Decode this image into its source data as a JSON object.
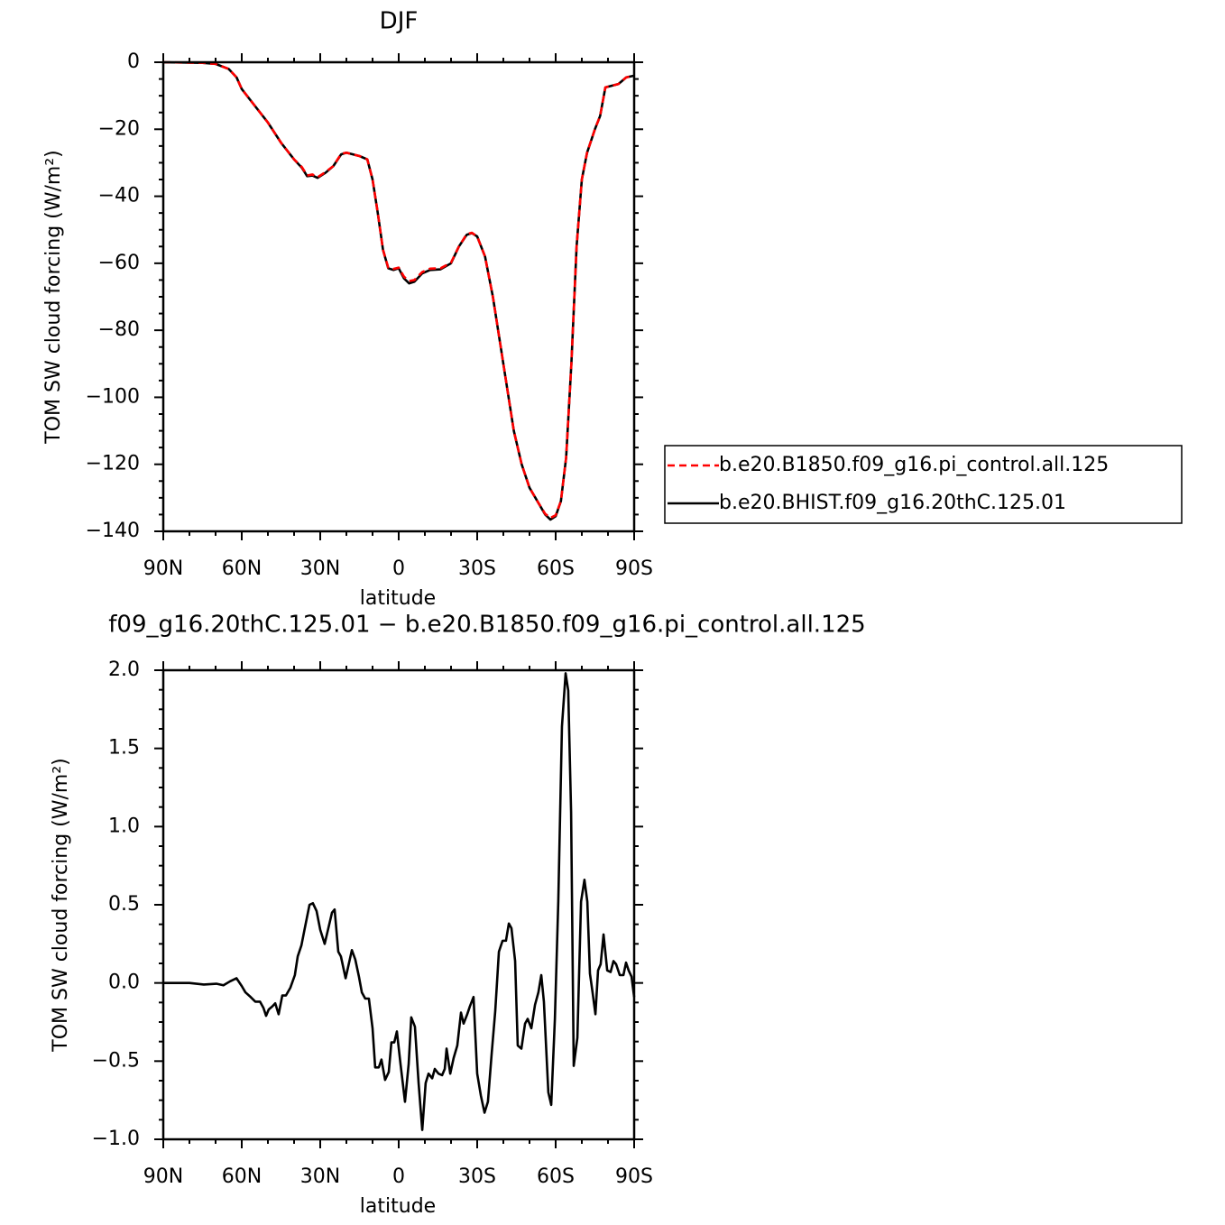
{
  "chart_data": [
    {
      "type": "line",
      "title": "DJF",
      "xlabel": "latitude",
      "ylabel": "TOM SW cloud forcing (W/m²)",
      "xlim": [
        90,
        -90
      ],
      "xticks": [
        {
          "value": 90,
          "label": "90N"
        },
        {
          "value": 60,
          "label": "60N"
        },
        {
          "value": 30,
          "label": "30N"
        },
        0,
        {
          "value": -30,
          "label": "30S"
        },
        {
          "value": -60,
          "label": "60S"
        },
        {
          "value": -90,
          "label": "90S"
        }
      ],
      "ylim": [
        -140,
        0
      ],
      "yticks": [
        0,
        {
          "value": -20,
          "label": "−20"
        },
        {
          "value": -40,
          "label": "−40"
        },
        {
          "value": -60,
          "label": "−60"
        },
        {
          "value": -80,
          "label": "−80"
        },
        {
          "value": -100,
          "label": "−100"
        },
        {
          "value": -120,
          "label": "−120"
        },
        {
          "value": -140,
          "label": "−140"
        }
      ],
      "legend": "right",
      "x": [
        90,
        75,
        70,
        65,
        62,
        60,
        55,
        50,
        45,
        40,
        37,
        35,
        33,
        31,
        28,
        25,
        22,
        20,
        15,
        12,
        10,
        8,
        6,
        4,
        2,
        0,
        -2,
        -4,
        -6,
        -9,
        -12,
        -16,
        -20,
        -23,
        -26,
        -28,
        -30,
        -33,
        -36,
        -40,
        -44,
        -47,
        -50,
        -53,
        -56,
        -58,
        -60,
        -62,
        -64,
        -66,
        -68,
        -70,
        -72,
        -75,
        -77,
        -79,
        -84,
        -87,
        -90
      ],
      "series": [
        {
          "name": "b.e20.B1850.f09_g16.pi_control.all.125",
          "color": "#ff0000",
          "dashed": true,
          "values": [
            0,
            -0.2,
            -0.5,
            -2,
            -4.5,
            -8,
            -13,
            -18,
            -24,
            -29,
            -31.3,
            -33.8,
            -33.5,
            -34.3,
            -32.8,
            -31,
            -27.3,
            -27,
            -28,
            -29,
            -35,
            -45,
            -56,
            -61.3,
            -61.7,
            -61.3,
            -64,
            -65.3,
            -65,
            -62.6,
            -61.6,
            -61.5,
            -59.8,
            -55,
            -51.3,
            -50.9,
            -52,
            -58,
            -70,
            -90,
            -110,
            -120,
            -127,
            -131,
            -134.8,
            -136,
            -135.2,
            -131,
            -118,
            -90,
            -55,
            -35,
            -27,
            -20,
            -16,
            -7.5,
            -6.5,
            -4.5,
            -4
          ]
        },
        {
          "name": "b.e20.BHIST.f09_g16.20thC.125.01",
          "color": "#000000",
          "dashed": false,
          "values": [
            0,
            -0.2,
            -0.5,
            -2,
            -4.5,
            -8,
            -13,
            -18,
            -24,
            -29,
            -31.5,
            -34,
            -33.8,
            -34.5,
            -33,
            -31,
            -27.5,
            -27,
            -28,
            -29,
            -35,
            -45,
            -56,
            -61.5,
            -62,
            -61.5,
            -64.5,
            -66,
            -65.5,
            -63,
            -62,
            -61.8,
            -60,
            -55,
            -51.5,
            -51,
            -52,
            -58,
            -70,
            -90,
            -110,
            -120,
            -127,
            -131,
            -135,
            -136.5,
            -135.5,
            -131,
            -118,
            -90,
            -55,
            -35,
            -27,
            -20,
            -16,
            -7.5,
            -6.5,
            -4.5,
            -4
          ]
        }
      ]
    },
    {
      "type": "line",
      "title": "f09_g16.20thC.125.01 − b.e20.B1850.f09_g16.pi_control.all.125",
      "xlabel": "latitude",
      "ylabel": "TOM SW cloud forcing (W/m²)",
      "xlim": [
        90,
        -90
      ],
      "xticks": [
        {
          "value": 90,
          "label": "90N"
        },
        {
          "value": 60,
          "label": "60N"
        },
        {
          "value": 30,
          "label": "30N"
        },
        0,
        {
          "value": -30,
          "label": "30S"
        },
        {
          "value": -60,
          "label": "60S"
        },
        {
          "value": -90,
          "label": "90S"
        }
      ],
      "ylim": [
        -1,
        2
      ],
      "yticks": [
        {
          "value": 2,
          "label": "2.0"
        },
        {
          "value": 1.5,
          "label": "1.5"
        },
        {
          "value": 1,
          "label": "1.0"
        },
        {
          "value": 0.5,
          "label": "0.5"
        },
        {
          "value": 0,
          "label": "0.0"
        },
        {
          "value": -0.5,
          "label": "−0.5"
        },
        {
          "value": -1,
          "label": "−1.0"
        }
      ],
      "color": "#000000",
      "x": [
        90,
        80,
        74.5,
        69.7,
        67,
        64.5,
        62,
        60,
        58.6,
        56.6,
        54.8,
        53,
        51.7,
        50.7,
        49.7,
        48.3,
        47.2,
        45.9,
        44.5,
        43.1,
        41.4,
        39.7,
        38.6,
        37.2,
        35.9,
        34.1,
        32.8,
        31.4,
        30,
        28.3,
        26.9,
        25.5,
        24.5,
        23.1,
        22.1,
        20.3,
        17.9,
        16.6,
        15.2,
        14.1,
        12.8,
        11.4,
        10,
        9,
        7.6,
        6.6,
        5.2,
        3.8,
        2.8,
        1.7,
        0.7,
        -0.7,
        -2.4,
        -3.8,
        -4.8,
        -6.2,
        -7.6,
        -9,
        -10.3,
        -11.4,
        -12.8,
        -13.8,
        -15.2,
        -16.6,
        -17.6,
        -18.3,
        -19.7,
        -21,
        -22.4,
        -23.8,
        -24.8,
        -26.2,
        -27.2,
        -28.6,
        -30,
        -31.4,
        -32.8,
        -34.1,
        -35.5,
        -36.9,
        -38.3,
        -39.7,
        -41,
        -42.1,
        -43.1,
        -44.5,
        -45.5,
        -46.9,
        -48.3,
        -49.3,
        -50.7,
        -52.1,
        -53.4,
        -54.5,
        -55.5,
        -57.2,
        -58.3,
        -59.7,
        -61,
        -62.4,
        -63.8,
        -64.8,
        -65.9,
        -66.9,
        -68.3,
        -69.7,
        -71,
        -72.1,
        -73.1,
        -74.1,
        -75.2,
        -76.2,
        -77.2,
        -78.3,
        -79.7,
        -81,
        -82.1,
        -83.1,
        -84.5,
        -85.9,
        -86.9,
        -87.9,
        -89,
        -90
      ],
      "values": [
        0,
        0,
        -0.01,
        -0.005,
        -0.015,
        0.01,
        0.03,
        -0.02,
        -0.06,
        -0.09,
        -0.12,
        -0.12,
        -0.16,
        -0.21,
        -0.17,
        -0.15,
        -0.13,
        -0.2,
        -0.08,
        -0.08,
        -0.03,
        0.05,
        0.17,
        0.24,
        0.35,
        0.5,
        0.51,
        0.46,
        0.34,
        0.25,
        0.35,
        0.45,
        0.47,
        0.2,
        0.17,
        0.03,
        0.21,
        0.15,
        0.04,
        -0.06,
        -0.1,
        -0.1,
        -0.29,
        -0.54,
        -0.54,
        -0.49,
        -0.62,
        -0.57,
        -0.38,
        -0.38,
        -0.31,
        -0.52,
        -0.76,
        -0.52,
        -0.22,
        -0.28,
        -0.64,
        -0.94,
        -0.64,
        -0.58,
        -0.61,
        -0.55,
        -0.58,
        -0.59,
        -0.55,
        -0.42,
        -0.58,
        -0.48,
        -0.4,
        -0.19,
        -0.26,
        -0.2,
        -0.15,
        -0.09,
        -0.58,
        -0.72,
        -0.83,
        -0.76,
        -0.46,
        -0.18,
        0.2,
        0.27,
        0.27,
        0.38,
        0.35,
        0.14,
        -0.4,
        -0.42,
        -0.26,
        -0.23,
        -0.29,
        -0.14,
        -0.06,
        0.05,
        -0.12,
        -0.7,
        -0.78,
        -0.23,
        0.52,
        1.64,
        1.98,
        1.87,
        1.09,
        -0.53,
        -0.35,
        0.52,
        0.66,
        0.52,
        0.06,
        -0.06,
        -0.2,
        0.08,
        0.12,
        0.31,
        0.08,
        0.07,
        0.14,
        0.12,
        0.05,
        0.05,
        0.13,
        0.08,
        0.04,
        -0.09
      ]
    }
  ]
}
